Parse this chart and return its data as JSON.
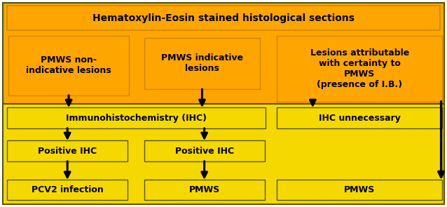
{
  "fig_width": 6.38,
  "fig_height": 2.95,
  "dpi": 100,
  "bg_orange": "#FFA500",
  "bg_yellow": "#F5D800",
  "border_orange": "#CC8800",
  "border_yellow": "#A0A000",
  "border_dark": "#555500",
  "text_color": "#000000",
  "top_title": "Hematoxylin-Eosin stained histological sections",
  "box1_text": "PMWS non-\nindicative lesions",
  "box2_text": "PMWS indicative\nlesions",
  "box3_text": "Lesions attributable\nwith certainty to\nPMWS\n(presence of I.B.)",
  "ihc_text": "Immunohistochemistry (IHC)",
  "ihc_unnec_text": "IHC unnecessary",
  "pos_ihc1_text": "Positive IHC",
  "pos_ihc2_text": "Positive IHC",
  "pcv2_text": "PCV2 infection",
  "pmws2_text": "PMWS",
  "pmws3_text": "PMWS",
  "font_size_title": 10,
  "font_size_box": 9
}
